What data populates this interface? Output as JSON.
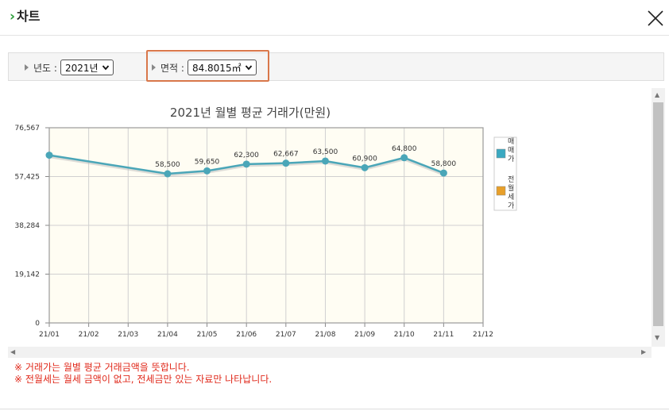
{
  "window": {
    "title": "차트",
    "title_icon": "chevron-right-icon",
    "close_icon": "close-icon"
  },
  "filters": {
    "year_label": "년도 :",
    "year_value": "2021년",
    "area_label": "면적 :",
    "area_value": "84.8015㎡"
  },
  "colors": {
    "series_line": "#4aa6b8",
    "legend_sale": "#3aa9c1",
    "legend_rent": "#e8a02a",
    "plot_bg": "#fffdf3",
    "note_text": "#e0291b",
    "highlight": "#d9774a"
  },
  "chart_data": {
    "type": "line",
    "title": "2021년 월별 평균 거래가(만원)",
    "categories": [
      "21/01",
      "21/02",
      "21/03",
      "21/04",
      "21/05",
      "21/06",
      "21/07",
      "21/08",
      "21/09",
      "21/10",
      "21/11",
      "21/12"
    ],
    "y_ticks": [
      "76,567",
      "57,425",
      "38,284",
      "19,142",
      "0"
    ],
    "ylim": [
      0,
      76567
    ],
    "grid": true,
    "legend_position": "right",
    "series": [
      {
        "name": "매매가",
        "values": [
          65800,
          null,
          null,
          58500,
          59650,
          62300,
          62667,
          63500,
          60900,
          64800,
          58800,
          null
        ],
        "labels": [
          "",
          "",
          "",
          "58,500",
          "59,650",
          "62,300",
          "62,667",
          "63,500",
          "60,900",
          "64,800",
          "58,800",
          ""
        ]
      }
    ],
    "legend": [
      {
        "label": "매매가",
        "color": "#3aa9c1"
      },
      {
        "label": "전월세가",
        "color": "#e8a02a"
      }
    ]
  },
  "notes": [
    "※ 거래가는 월별 평균 거래금액을 뜻합니다.",
    "※ 전월세는 월세 금액이 없고, 전세금만 있는 자료만 나타납니다."
  ],
  "scroll": {
    "up": "▲",
    "down": "▼",
    "left": "◀",
    "right": "▶"
  }
}
